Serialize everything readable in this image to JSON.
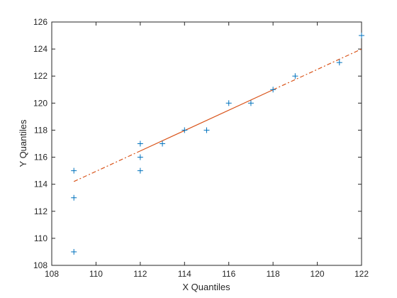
{
  "chart_data": {
    "type": "scatter",
    "title": "",
    "xlabel": "X Quantiles",
    "ylabel": "Y Quantiles",
    "xlim": [
      108,
      122
    ],
    "ylim": [
      108,
      126
    ],
    "xticks": [
      108,
      110,
      112,
      114,
      116,
      118,
      120,
      122
    ],
    "yticks": [
      108,
      110,
      112,
      114,
      116,
      118,
      120,
      122,
      124,
      126
    ],
    "grid": false,
    "legend": "none",
    "series": [
      {
        "marker": "+",
        "color": "#0072BD",
        "x": [
          109,
          109,
          109,
          112,
          112,
          112,
          113,
          114,
          115,
          116,
          117,
          118,
          119,
          121,
          122
        ],
        "y": [
          109,
          113,
          115,
          115,
          116,
          117,
          117,
          118,
          118,
          120,
          120,
          121,
          122,
          123,
          125
        ]
      }
    ],
    "reference_line": {
      "color": "#D95319",
      "x": [
        109,
        122
      ],
      "y": [
        114.2,
        124.0
      ],
      "solid_range": [
        112,
        118
      ]
    }
  }
}
